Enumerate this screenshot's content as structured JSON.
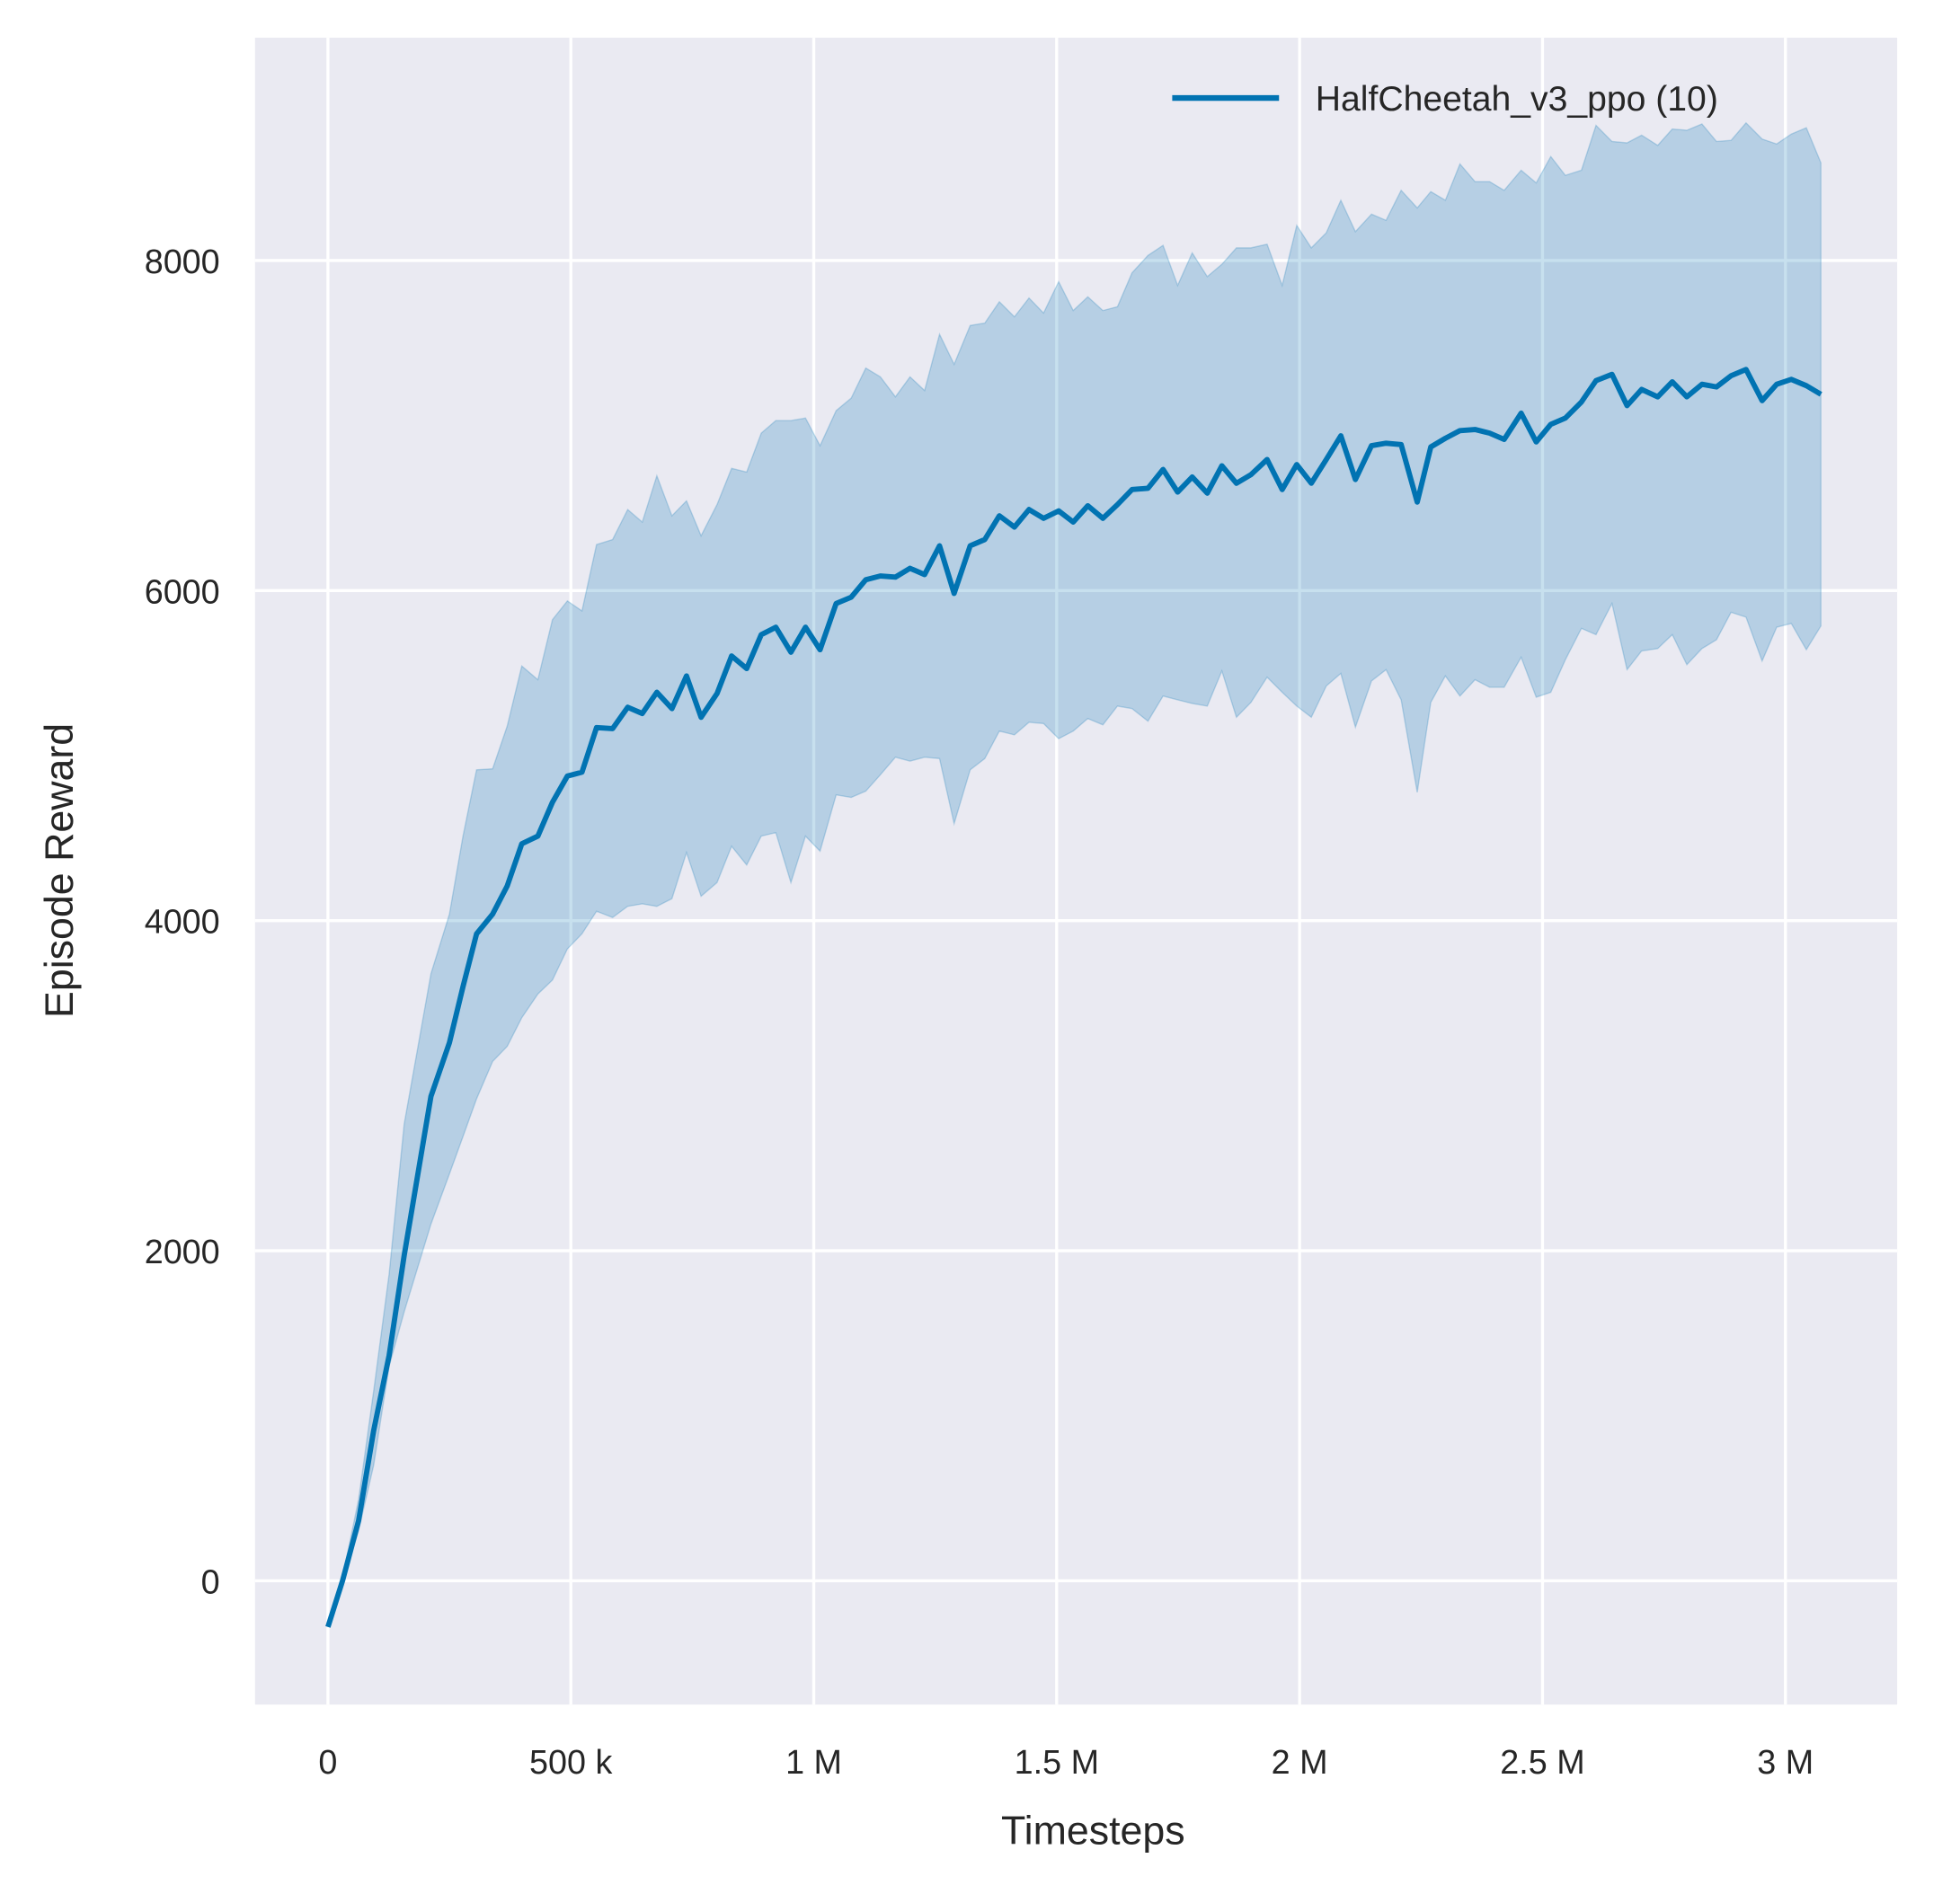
{
  "chart_data": {
    "type": "line",
    "title": "",
    "xlabel": "Timesteps",
    "ylabel": "Episode Reward",
    "xlim": [
      -150000,
      3230000
    ],
    "ylim": [
      -750,
      9350
    ],
    "grid": true,
    "legend_placement": "top-right",
    "x_ticks": [
      0,
      500000,
      1000000,
      1500000,
      2000000,
      2500000,
      3000000
    ],
    "x_tick_labels": [
      "0",
      "500 k",
      "1 M",
      "1.5 M",
      "2 M",
      "2.5 M",
      "3 M"
    ],
    "y_ticks": [
      0,
      2000,
      4000,
      6000,
      8000
    ],
    "y_tick_labels": [
      "0",
      "2000",
      "4000",
      "6000",
      "8000"
    ],
    "colors": {
      "background": "#eaeaf2",
      "grid": "#ffffff",
      "series": "#0173b2"
    },
    "series": [
      {
        "name": "HalfCheetah_v3_ppo (10)",
        "x": [
          0,
          30000,
          63000,
          94000,
          126000,
          157000,
          212000,
          250000,
          278000,
          306000,
          339000,
          369000,
          399000,
          432000,
          462000,
          493000,
          523000,
          553000,
          586000,
          617000,
          647000,
          677000,
          708000,
          738000,
          768000,
          801000,
          831000,
          862000,
          892000,
          922000,
          953000,
          983000,
          1013000,
          1046000,
          1077000,
          1107000,
          1137000,
          1168000,
          1198000,
          1228000,
          1259000,
          1289000,
          1322000,
          1352000,
          1382000,
          1413000,
          1443000,
          1473000,
          1504000,
          1534000,
          1564000,
          1595000,
          1625000,
          1655000,
          1688000,
          1719000,
          1749000,
          1779000,
          1810000,
          1840000,
          1870000,
          1900000,
          1933000,
          1964000,
          1994000,
          2024000,
          2055000,
          2085000,
          2115000,
          2148000,
          2178000,
          2209000,
          2242000,
          2270000,
          2300000,
          2330000,
          2361000,
          2391000,
          2421000,
          2456000,
          2487000,
          2517000,
          2547000,
          2580000,
          2610000,
          2643000,
          2674000,
          2704000,
          2737000,
          2767000,
          2797000,
          2828000,
          2858000,
          2888000,
          2919000,
          2952000,
          2982000,
          3012000,
          3043000,
          3073000
        ],
        "mean": [
          -280,
          0,
          364,
          910,
          1365,
          1972,
          2935,
          3260,
          3600,
          3920,
          4040,
          4210,
          4466,
          4512,
          4717,
          4876,
          4900,
          5170,
          5164,
          5293,
          5255,
          5384,
          5285,
          5483,
          5232,
          5376,
          5604,
          5528,
          5733,
          5778,
          5627,
          5778,
          5642,
          5922,
          5960,
          6066,
          6089,
          6082,
          6135,
          6097,
          6271,
          5983,
          6271,
          6309,
          6453,
          6385,
          6491,
          6438,
          6483,
          6415,
          6514,
          6438,
          6521,
          6612,
          6620,
          6734,
          6597,
          6688,
          6590,
          6756,
          6650,
          6703,
          6794,
          6612,
          6764,
          6650,
          6794,
          6938,
          6673,
          6878,
          6893,
          6885,
          6536,
          6870,
          6923,
          6969,
          6976,
          6954,
          6916,
          7075,
          6901,
          7007,
          7045,
          7143,
          7272,
          7310,
          7121,
          7219,
          7174,
          7265,
          7174,
          7250,
          7234,
          7302,
          7340,
          7151,
          7250,
          7280,
          7242,
          7189
        ],
        "upper": [
          -280,
          20,
          493,
          1150,
          1858,
          2768,
          3678,
          4040,
          4512,
          4914,
          4920,
          5179,
          5543,
          5460,
          5824,
          5937,
          5877,
          6279,
          6309,
          6491,
          6415,
          6696,
          6453,
          6544,
          6332,
          6521,
          6741,
          6718,
          6954,
          7030,
          7030,
          7045,
          6878,
          7090,
          7166,
          7348,
          7295,
          7174,
          7295,
          7212,
          7553,
          7371,
          7606,
          7621,
          7750,
          7659,
          7773,
          7682,
          7872,
          7697,
          7780,
          7697,
          7720,
          7925,
          8031,
          8092,
          7849,
          8046,
          7902,
          7977,
          8077,
          8077,
          8099,
          7849,
          8213,
          8077,
          8168,
          8365,
          8175,
          8281,
          8243,
          8425,
          8319,
          8418,
          8365,
          8585,
          8478,
          8478,
          8425,
          8547,
          8470,
          8630,
          8516,
          8547,
          8819,
          8721,
          8713,
          8759,
          8698,
          8797,
          8789,
          8827,
          8721,
          8728,
          8834,
          8736,
          8706,
          8766,
          8804,
          8592
        ],
        "lower": [
          -280,
          -10,
          303,
          700,
          1300,
          1630,
          2161,
          2465,
          2692,
          2920,
          3147,
          3238,
          3412,
          3556,
          3640,
          3829,
          3920,
          4057,
          4019,
          4087,
          4102,
          4087,
          4133,
          4413,
          4148,
          4231,
          4451,
          4337,
          4512,
          4534,
          4231,
          4512,
          4421,
          4762,
          4747,
          4785,
          4884,
          4990,
          4967,
          4990,
          4982,
          4588,
          4914,
          4982,
          5149,
          5126,
          5202,
          5194,
          5103,
          5149,
          5225,
          5187,
          5300,
          5285,
          5209,
          5361,
          5338,
          5316,
          5300,
          5513,
          5232,
          5323,
          5475,
          5384,
          5300,
          5232,
          5422,
          5498,
          5172,
          5452,
          5521,
          5338,
          4777,
          5323,
          5483,
          5361,
          5460,
          5414,
          5414,
          5596,
          5354,
          5384,
          5581,
          5771,
          5733,
          5922,
          5521,
          5634,
          5649,
          5733,
          5551,
          5649,
          5702,
          5869,
          5839,
          5573,
          5778,
          5801,
          5642,
          5786
        ]
      }
    ]
  }
}
